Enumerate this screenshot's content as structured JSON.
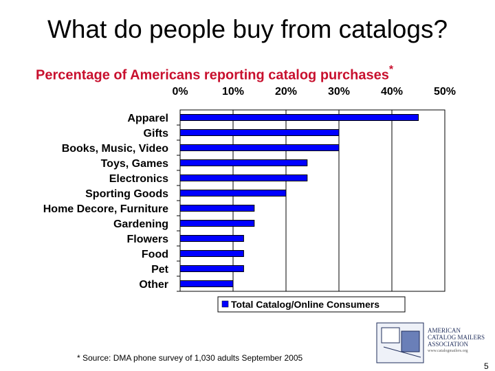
{
  "slide": {
    "title": "What do people buy from catalogs?",
    "footnote": "* Source: DMA phone survey of 1,030 adults September 2005",
    "page_number": "5"
  },
  "logo": {
    "line1": "AMERICAN",
    "line2": "CATALOG MAILERS",
    "line3": "ASSOCIATION",
    "url": "www.catalogmailers.org"
  },
  "chart_data": {
    "type": "bar",
    "orientation": "horizontal",
    "title": "Percentage of Americans reporting catalog purchases",
    "title_marker": "*",
    "categories": [
      "Apparel",
      "Gifts",
      "Books, Music, Video",
      "Toys, Games",
      "Electronics",
      "Sporting Goods",
      "Home Decore, Furniture",
      "Gardening",
      "Flowers",
      "Food",
      "Pet",
      "Other"
    ],
    "series": [
      {
        "name": "Total Catalog/Online Consumers",
        "color": "#0000ff",
        "values": [
          45,
          30,
          30,
          24,
          24,
          20,
          14,
          14,
          12,
          12,
          12,
          10
        ]
      }
    ],
    "xlim": [
      0,
      50
    ],
    "xticks": [
      "0%",
      "10%",
      "20%",
      "30%",
      "40%",
      "50%"
    ],
    "xaxis_position": "top",
    "grid": true,
    "legend_position": "bottom"
  }
}
